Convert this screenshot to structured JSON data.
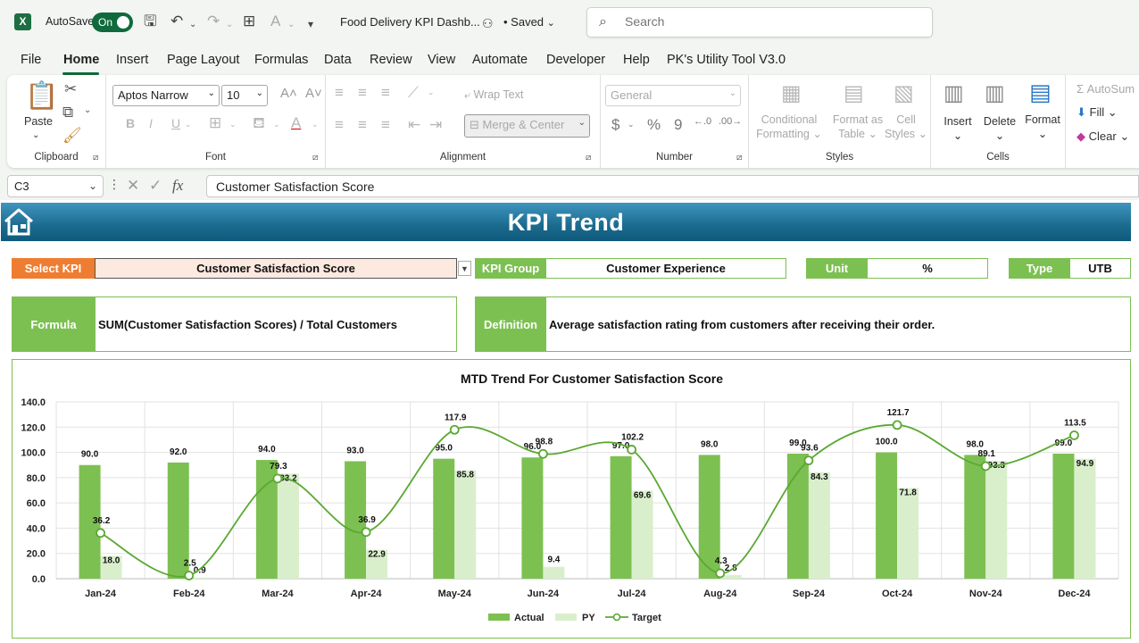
{
  "titlebar": {
    "autosave_label": "AutoSave",
    "autosave_state": "On",
    "document_title": "Food Delivery KPI Dashb...",
    "saved_status": "• Saved",
    "search_placeholder": "Search"
  },
  "menu": {
    "items": [
      "File",
      "Home",
      "Insert",
      "Page Layout",
      "Formulas",
      "Data",
      "Review",
      "View",
      "Automate",
      "Developer",
      "Help",
      "PK's Utility Tool V3.0"
    ],
    "active": "Home"
  },
  "ribbon": {
    "clipboard": {
      "label": "Clipboard",
      "paste": "Paste"
    },
    "font": {
      "label": "Font",
      "font_name": "Aptos Narrow",
      "font_size": "10"
    },
    "alignment": {
      "label": "Alignment",
      "wrap_text": "Wrap Text",
      "merge_center": "Merge & Center"
    },
    "number": {
      "label": "Number",
      "format": "General"
    },
    "styles": {
      "label": "Styles",
      "conditional_1": "Conditional",
      "conditional_2": "Formatting",
      "format_table_1": "Format as",
      "format_table_2": "Table",
      "cell_styles_1": "Cell",
      "cell_styles_2": "Styles"
    },
    "cells": {
      "label": "Cells",
      "insert": "Insert",
      "delete": "Delete",
      "format": "Format"
    },
    "editing": {
      "autosum": "AutoSum",
      "fill": "Fill",
      "clear": "Clear"
    }
  },
  "formula_bar": {
    "cell_ref": "C3",
    "content": "Customer Satisfaction Score"
  },
  "dashboard": {
    "title": "KPI Trend",
    "select_kpi_label": "Select KPI",
    "select_kpi_value": "Customer Satisfaction Score",
    "kpi_group_label": "KPI Group",
    "kpi_group_value": "Customer Experience",
    "unit_label": "Unit",
    "unit_value": "%",
    "type_label": "Type",
    "type_value": "UTB",
    "formula_label": "Formula",
    "formula_value": "SUM(Customer Satisfaction Scores) / Total Customers",
    "definition_label": "Definition",
    "definition_value": "Average satisfaction rating from customers after receiving their order."
  },
  "colors": {
    "actual": "#7dc052",
    "py": "#d9efcc",
    "target": "#5aa832",
    "banner": "#1b6b8e",
    "orange": "#ef7d31"
  },
  "chart_data": {
    "type": "bar",
    "title": "MTD Trend For Customer Satisfaction Score",
    "categories": [
      "Jan-24",
      "Feb-24",
      "Mar-24",
      "Apr-24",
      "May-24",
      "Jun-24",
      "Jul-24",
      "Aug-24",
      "Sep-24",
      "Oct-24",
      "Nov-24",
      "Dec-24"
    ],
    "series": [
      {
        "name": "Actual",
        "type": "bar",
        "values": [
          90.0,
          92.0,
          94.0,
          93.0,
          95.0,
          96.0,
          97.0,
          98.0,
          99.0,
          100.0,
          98.0,
          99.0
        ]
      },
      {
        "name": "PY",
        "type": "bar",
        "values": [
          18.0,
          0.9,
          83.2,
          22.9,
          85.8,
          9.4,
          69.6,
          2.8,
          84.3,
          71.8,
          93.3,
          94.9
        ]
      },
      {
        "name": "Target",
        "type": "line",
        "values": [
          36.2,
          2.5,
          79.3,
          36.9,
          117.9,
          98.8,
          102.2,
          4.3,
          93.6,
          121.7,
          89.1,
          113.5
        ]
      }
    ],
    "ylim": [
      0,
      140
    ],
    "yticks": [
      "0.0",
      "20.0",
      "40.0",
      "60.0",
      "80.0",
      "100.0",
      "120.0",
      "140.0"
    ],
    "grid": true,
    "legend": "bottom"
  }
}
